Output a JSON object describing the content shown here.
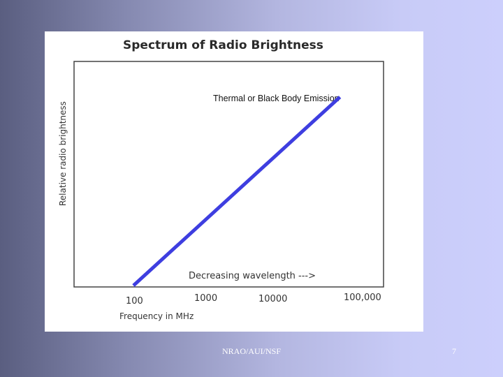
{
  "chart_data": {
    "type": "line",
    "title": "Spectrum of Radio Brightness",
    "xlabel": "Frequency in MHz",
    "ylabel": "Relative radio brightness",
    "x_ticks": [
      "100",
      "1000",
      "10000",
      "100,000"
    ],
    "x_scale": "log",
    "annotation": "Thermal or Black Body Emission",
    "axis_note": "Decreasing wavelength --->",
    "series": [
      {
        "color": "#3e3ee0",
        "x": [
          100,
          250000
        ],
        "y": [
          0,
          1
        ]
      }
    ]
  },
  "footer": {
    "text": "NRAO/AUI/NSF",
    "page_number": "7"
  }
}
